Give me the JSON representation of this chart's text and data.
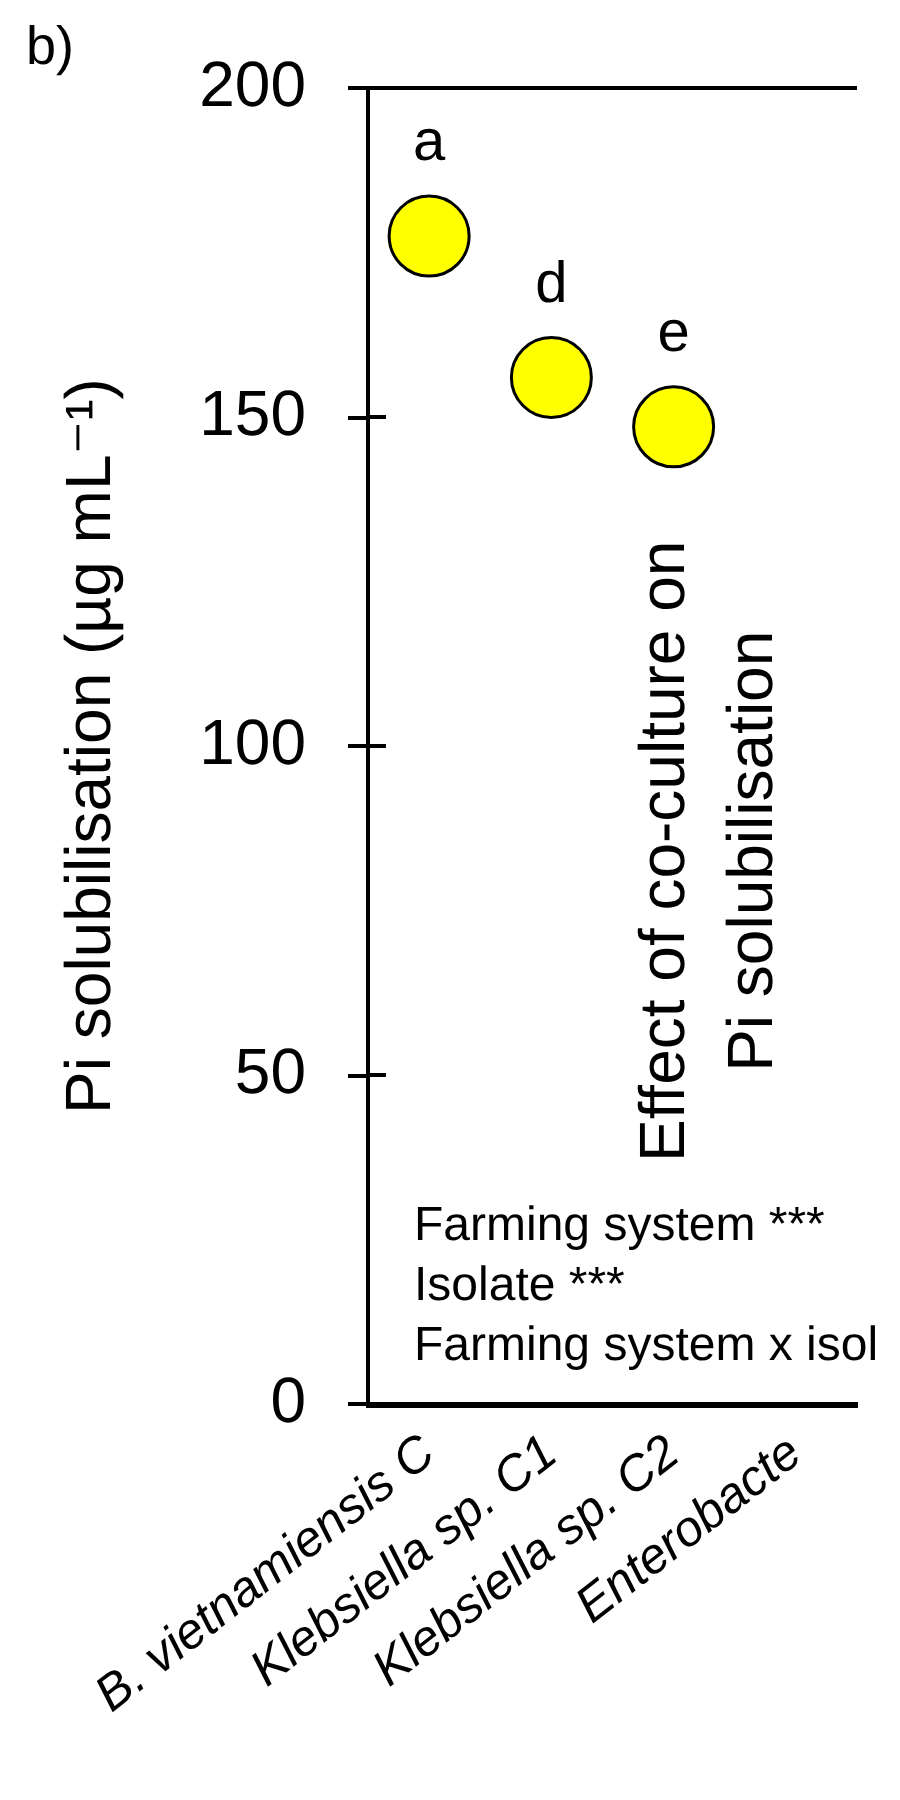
{
  "chart_data": {
    "type": "scatter",
    "title": "Effect of co-culture on\nPi solubilisation",
    "ylabel": "Pi solubilisation (µg mL⁻¹)",
    "categories": [
      "B. vietnamiensis C",
      "Klebsiella sp. C1",
      "Klebsiella sp. C2",
      "Enterobacte"
    ],
    "series": [
      {
        "color": "#ffff00",
        "values": [
          177.5,
          156,
          148.5,
          null
        ]
      }
    ],
    "ylim": [
      0,
      200
    ],
    "yticks": [
      0,
      50,
      100,
      150,
      200
    ],
    "marker": "circle",
    "annotations": [
      "b)",
      {
        "text": "a",
        "x": "B. vietnamiensis C",
        "y": 177.5
      },
      {
        "text": "d",
        "x": "Klebsiella sp. C1",
        "y": 156
      },
      {
        "text": "e",
        "x": "Klebsiella sp. C2",
        "y": 148.5
      },
      "Farming system ***",
      "Isolate ***",
      "Farming system x isol"
    ]
  }
}
